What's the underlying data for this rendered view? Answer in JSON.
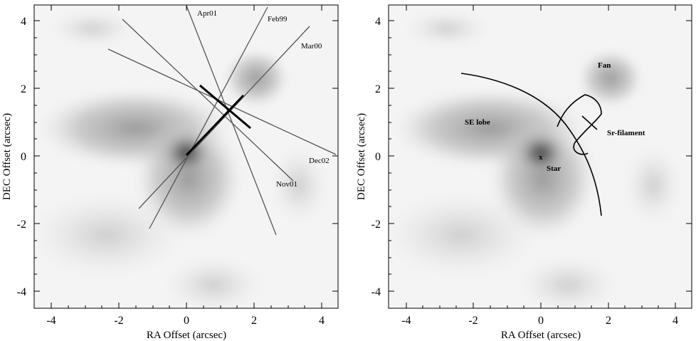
{
  "panels": [
    {
      "id": "left",
      "xlabel": "RA Offset (arcsec)",
      "ylabel": "DEC Offset (arcsec)",
      "xticks": [
        "-4",
        "-2",
        "0",
        "2",
        "4"
      ],
      "yticks": [
        "4",
        "2",
        "0",
        "-2",
        "-4"
      ],
      "annotations": {
        "apr01": "Apr01",
        "feb99": "Feb99",
        "mar00": "Mar00",
        "dec02": "Dec02",
        "nov01": "Nov01"
      }
    },
    {
      "id": "right",
      "xlabel": "RA Offset (arcsec)",
      "ylabel": "DEC Offset (arcsec)",
      "xticks": [
        "-4",
        "-2",
        "0",
        "2",
        "4"
      ],
      "yticks": [
        "4",
        "2",
        "0",
        "-2",
        "-4"
      ],
      "annotations": {
        "fan": "Fan",
        "se_lobe": "SE lobe",
        "sr_filament": "Sr-filament",
        "star_mark": "x",
        "star": "Star"
      }
    }
  ],
  "colors": {
    "background": "#f4f4f4",
    "nebula_dark": "#6a6a6a",
    "nebula_light": "#cfcfcf"
  }
}
